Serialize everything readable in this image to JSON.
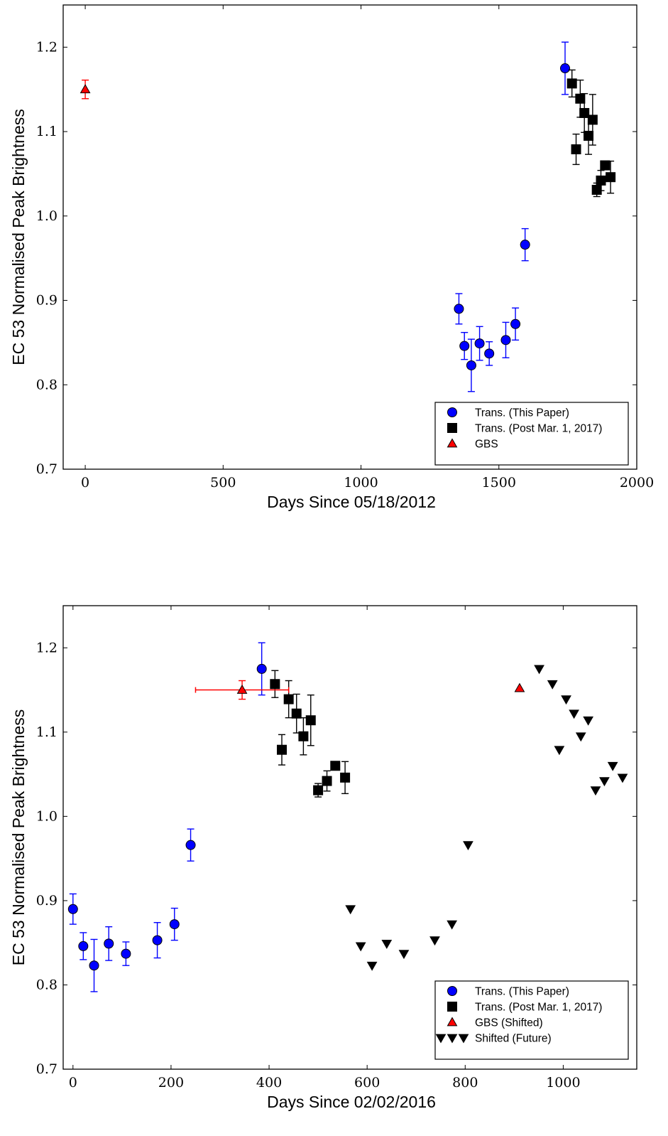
{
  "chart_data": [
    {
      "type": "scatter",
      "title": "",
      "xlabel": "Days Since 05/18/2012",
      "ylabel": "EC 53 Normalised Peak Brightness",
      "xlim": [
        -80,
        2000
      ],
      "ylim": [
        0.7,
        1.25
      ],
      "xticks": [
        0,
        500,
        1000,
        1500,
        2000
      ],
      "yticks": [
        0.7,
        0.8,
        0.9,
        1.0,
        1.1,
        1.2
      ],
      "xtick_labels": [
        "0",
        "500",
        "1000",
        "1500",
        "2000"
      ],
      "ytick_labels": [
        "0.7",
        "0.8",
        "0.9",
        "1.0",
        "1.1",
        "1.2"
      ],
      "grid": false,
      "legend_position": "lower-right",
      "series": [
        {
          "name": "Trans. (This Paper)",
          "marker": "circle",
          "color": "#0000ff",
          "x": [
            1355,
            1375,
            1400,
            1430,
            1465,
            1525,
            1560,
            1595,
            1740
          ],
          "y": [
            0.89,
            0.846,
            0.823,
            0.849,
            0.837,
            0.853,
            0.872,
            0.966,
            1.175
          ],
          "yerr": [
            0.018,
            0.016,
            0.031,
            0.02,
            0.014,
            0.021,
            0.019,
            0.019,
            0.031
          ]
        },
        {
          "name": "Trans. (Post Mar. 1, 2017)",
          "marker": "square",
          "color": "#000000",
          "x": [
            1765,
            1780,
            1795,
            1810,
            1825,
            1840,
            1855,
            1870,
            1885,
            1905
          ],
          "y": [
            1.157,
            1.079,
            1.139,
            1.122,
            1.095,
            1.114,
            1.031,
            1.042,
            1.06,
            1.046
          ],
          "yerr": [
            0.016,
            0.018,
            0.022,
            0.023,
            0.022,
            0.03,
            0.008,
            0.012,
            0.004,
            0.019
          ]
        },
        {
          "name": "GBS",
          "marker": "triangle-up",
          "color": "#ff0000",
          "x": [
            0
          ],
          "y": [
            1.15
          ],
          "yerr": [
            0.011
          ]
        }
      ]
    },
    {
      "type": "scatter",
      "title": "",
      "xlabel": "Days Since 02/02/2016",
      "ylabel": "EC 53 Normalised Peak Brightness",
      "xlim": [
        -20,
        1150
      ],
      "ylim": [
        0.7,
        1.25
      ],
      "xticks": [
        0,
        200,
        400,
        600,
        800,
        1000
      ],
      "yticks": [
        0.7,
        0.8,
        0.9,
        1.0,
        1.1,
        1.2
      ],
      "xtick_labels": [
        "0",
        "200",
        "400",
        "600",
        "800",
        "1000"
      ],
      "ytick_labels": [
        "0.7",
        "0.8",
        "0.9",
        "1.0",
        "1.1",
        "1.2"
      ],
      "grid": false,
      "legend_position": "lower-right",
      "series": [
        {
          "name": "Trans. (This Paper)",
          "marker": "circle",
          "color": "#0000ff",
          "x": [
            0,
            21,
            43,
            73,
            108,
            172,
            207,
            240,
            385
          ],
          "y": [
            0.89,
            0.846,
            0.823,
            0.849,
            0.837,
            0.853,
            0.872,
            0.966,
            1.175
          ],
          "yerr": [
            0.018,
            0.016,
            0.031,
            0.02,
            0.014,
            0.021,
            0.019,
            0.019,
            0.031
          ]
        },
        {
          "name": "Trans. (Post Mar. 1, 2017)",
          "marker": "square",
          "color": "#000000",
          "x": [
            412,
            426,
            440,
            456,
            470,
            485,
            500,
            518,
            535,
            555
          ],
          "y": [
            1.157,
            1.079,
            1.139,
            1.122,
            1.095,
            1.114,
            1.031,
            1.042,
            1.06,
            1.046
          ],
          "yerr": [
            0.016,
            0.018,
            0.022,
            0.023,
            0.022,
            0.03,
            0.008,
            0.012,
            0.004,
            0.019
          ]
        },
        {
          "name": "GBS (Shifted)",
          "marker": "triangle-up",
          "color": "#ff0000",
          "x": [
            345
          ],
          "y": [
            1.15
          ],
          "yerr": [
            0.011
          ],
          "xerr_range": [
            250,
            440
          ]
        },
        {
          "name": "Shifted (Future)",
          "marker": "triangle-down",
          "color": "#000000",
          "x": [
            566,
            587,
            610,
            640,
            675,
            738,
            773,
            806,
            951,
            978,
            992,
            1006,
            1022,
            1036,
            1051,
            1066,
            1084,
            1101,
            1121
          ],
          "y": [
            0.89,
            0.846,
            0.823,
            0.849,
            0.837,
            0.853,
            0.872,
            0.966,
            1.175,
            1.157,
            1.079,
            1.139,
            1.122,
            1.095,
            1.114,
            1.031,
            1.042,
            1.06,
            1.046
          ]
        },
        {
          "name": "",
          "marker": "triangle-up",
          "color": "#ff0000",
          "x": [
            911
          ],
          "y": [
            1.152
          ]
        }
      ]
    }
  ]
}
